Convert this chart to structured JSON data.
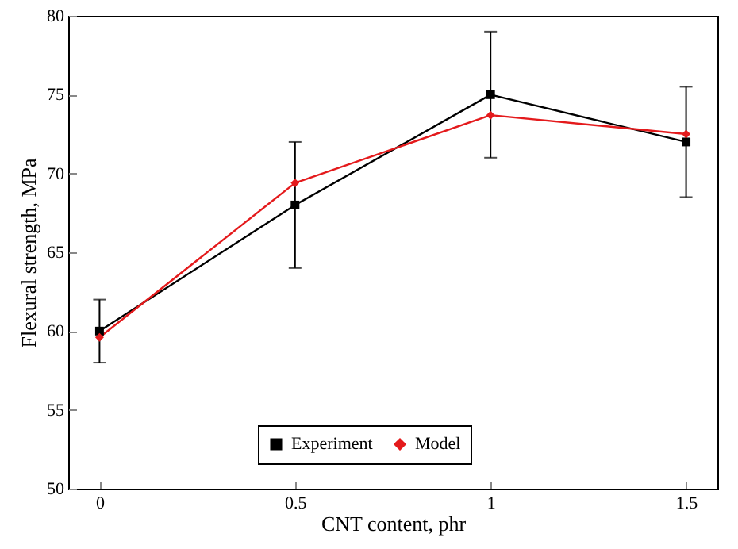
{
  "chart_data": {
    "type": "line",
    "xlabel": "CNT content, phr",
    "ylabel": "Flexural strength, MPa",
    "x": [
      0,
      0.5,
      1,
      1.5
    ],
    "series": [
      {
        "name": "Experiment",
        "color": "#000000",
        "marker": "square",
        "values": [
          60,
          68,
          75,
          72
        ],
        "errors": [
          2,
          4,
          4,
          3.5
        ]
      },
      {
        "name": "Model",
        "color": "#e41a1c",
        "marker": "diamond",
        "values": [
          59.6,
          69.4,
          73.7,
          72.5
        ]
      }
    ],
    "xlim": [
      -0.08,
      1.58
    ],
    "xticks": [
      0,
      0.5,
      1,
      1.5
    ],
    "ylim": [
      50,
      80
    ],
    "yticks": [
      50,
      55,
      60,
      65,
      70,
      75,
      80
    ],
    "legend": "bottom"
  }
}
